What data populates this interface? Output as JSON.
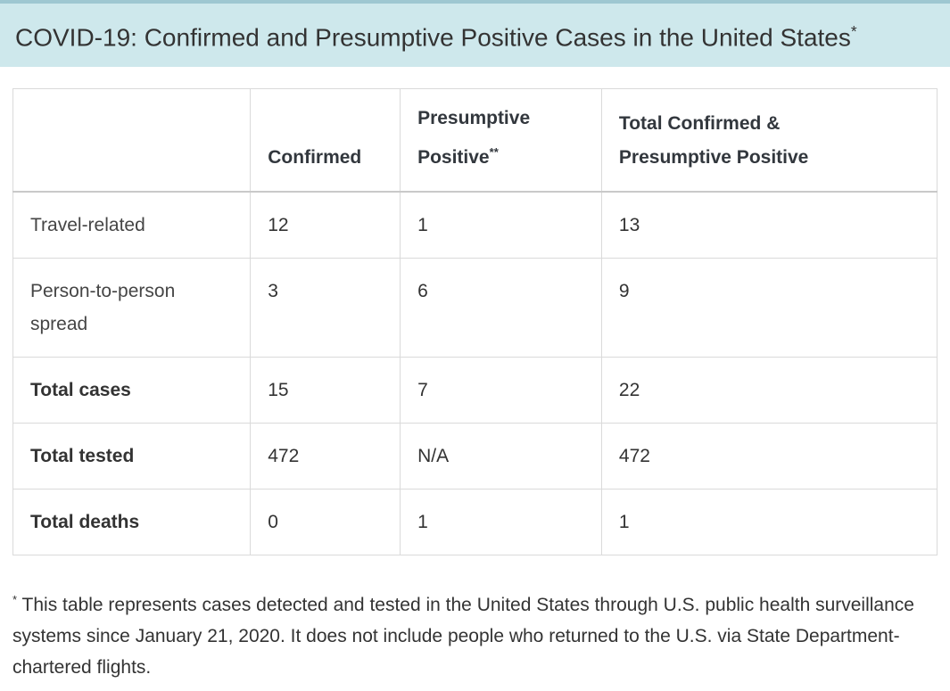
{
  "banner": {
    "title": "COVID-19: Confirmed and Presumptive Positive Cases in the United States",
    "title_sup": "*"
  },
  "table": {
    "columns": [
      "",
      "Confirmed",
      "Presumptive Positive",
      "Total Confirmed & Presumptive Positive"
    ],
    "presumptive_sup": "**",
    "rows": [
      {
        "label": "Travel-related",
        "confirmed": "12",
        "presumptive": "1",
        "total": "13"
      },
      {
        "label": "Person-to-person spread",
        "confirmed": "3",
        "presumptive": "6",
        "total": "9"
      },
      {
        "label": "Total cases",
        "confirmed": "15",
        "presumptive": "7",
        "total": "22"
      },
      {
        "label": "Total tested",
        "confirmed": "472",
        "presumptive": "N/A",
        "total": "472"
      },
      {
        "label": "Total deaths",
        "confirmed": "0",
        "presumptive": "1",
        "total": "1"
      }
    ]
  },
  "footnote": {
    "marker": "*",
    "text": "This table represents cases detected and tested in the United States through U.S. public health surveillance systems since January 21, 2020. It does not include people who returned to the U.S. via State Department-chartered flights."
  },
  "colors": {
    "banner_bg": "#cee8ec",
    "banner_top_border": "#9ec7d1",
    "text": "#333333",
    "table_border": "#dadada"
  }
}
